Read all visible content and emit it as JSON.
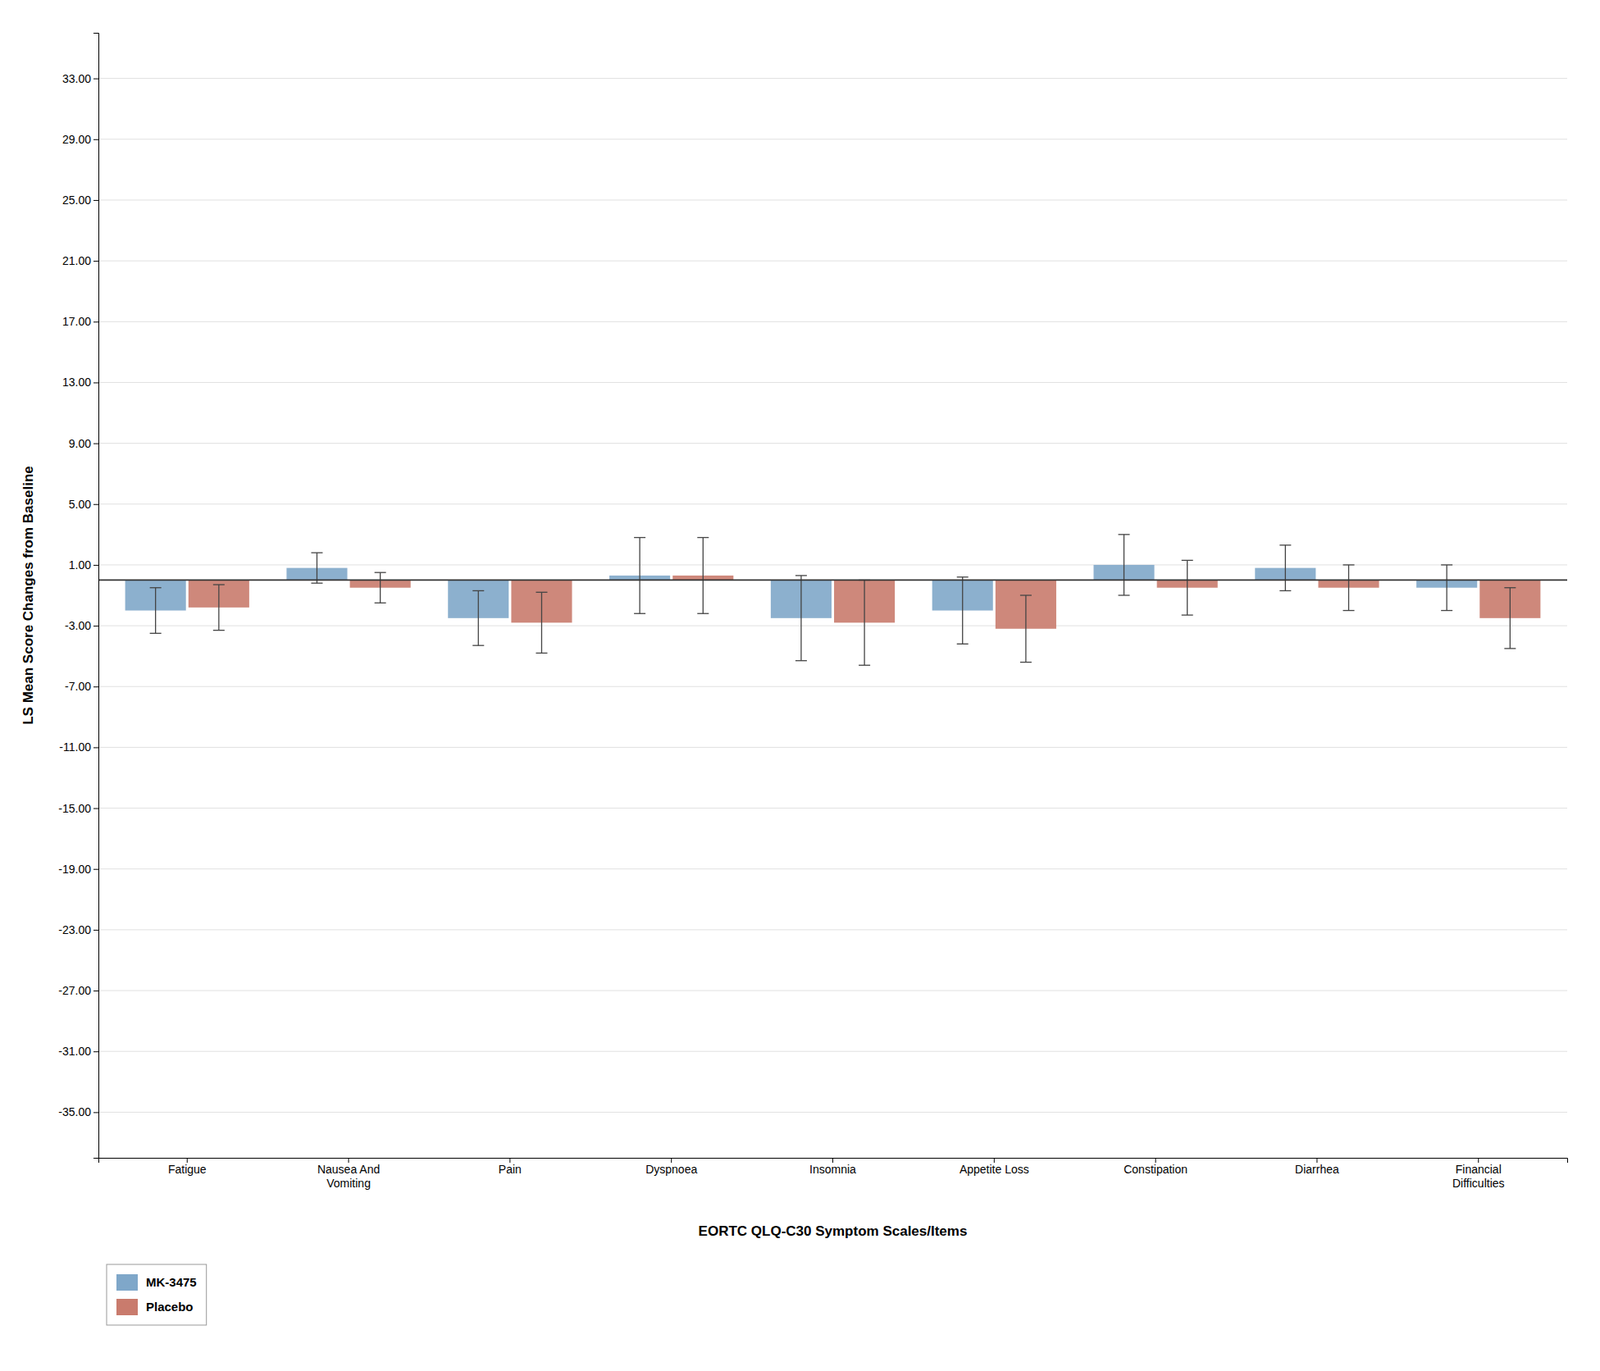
{
  "chart_data": {
    "type": "bar",
    "categories": [
      "Fatigue",
      "Nausea And\nVomiting",
      "Pain",
      "Dyspnoea",
      "Insomnia",
      "Appetite Loss",
      "Constipation",
      "Diarrhea",
      "Financial\nDifficulties"
    ],
    "series": [
      {
        "name": "MK-3475",
        "color": "#7fa7c9",
        "values": [
          -2.0,
          0.8,
          -2.5,
          0.3,
          -2.5,
          -2.0,
          1.0,
          0.8,
          -0.5
        ],
        "err_low": [
          1.5,
          1.0,
          1.8,
          2.5,
          2.8,
          2.2,
          2.0,
          1.5,
          1.5
        ],
        "err_high": [
          1.5,
          1.0,
          1.8,
          2.5,
          2.8,
          2.2,
          2.0,
          1.5,
          1.5
        ]
      },
      {
        "name": "Placebo",
        "color": "#c97b6d",
        "values": [
          -1.8,
          -0.5,
          -2.8,
          0.3,
          -2.8,
          -3.2,
          -0.5,
          -0.5,
          -2.5
        ],
        "err_low": [
          1.5,
          1.0,
          2.0,
          2.5,
          2.8,
          2.2,
          1.8,
          1.5,
          2.0
        ],
        "err_high": [
          1.5,
          1.0,
          2.0,
          2.5,
          2.8,
          2.2,
          1.8,
          1.5,
          2.0
        ]
      }
    ],
    "xlabel": "EORTC QLQ-C30 Symptom Scales/Items",
    "ylabel": "LS Mean Score Changes from Baseline",
    "ylim": [
      -38,
      36
    ],
    "yticks": [
      {
        "value": 33.0,
        "label": "33.00"
      },
      {
        "value": 29.0,
        "label": "29.00"
      },
      {
        "value": 25.0,
        "label": "25.00"
      },
      {
        "value": 21.0,
        "label": "21.00"
      },
      {
        "value": 17.0,
        "label": "17.00"
      },
      {
        "value": 13.0,
        "label": "13.00"
      },
      {
        "value": 9.0,
        "label": "9.00"
      },
      {
        "value": 5.0,
        "label": "5.00"
      },
      {
        "value": 1.0,
        "label": "1.00"
      },
      {
        "value": -3.0,
        "label": "-3.00"
      },
      {
        "value": -7.0,
        "label": "-7.00"
      },
      {
        "value": -11.0,
        "label": "-11.00"
      },
      {
        "value": -15.0,
        "label": "-15.00"
      },
      {
        "value": -19.0,
        "label": "-19.00"
      },
      {
        "value": -23.0,
        "label": "-23.00"
      },
      {
        "value": -27.0,
        "label": "-27.00"
      },
      {
        "value": -31.0,
        "label": "-31.00"
      },
      {
        "value": -35.0,
        "label": "-35.00"
      }
    ],
    "hline_y": 0.0,
    "grid": true,
    "legend": "lower left"
  }
}
